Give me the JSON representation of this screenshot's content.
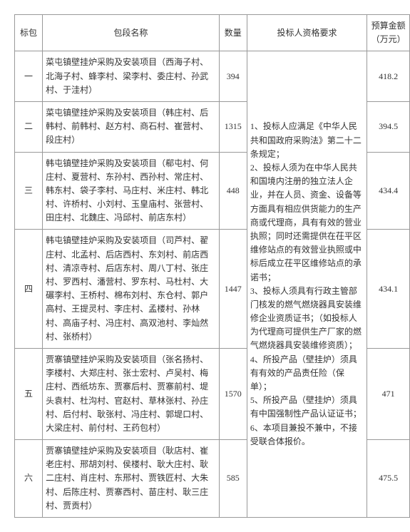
{
  "table": {
    "headers": {
      "biaobao": "标包",
      "name": "包段名称",
      "qty": "数量",
      "req": "投标人资格要求",
      "budget": "预算金额（万元）"
    },
    "rows": [
      {
        "biaobao": "一",
        "name": "菜屯镇壁挂炉采购及安装项目（西海子村、北海子村、蜂李村、梁李村、委庄村、孙武村、于洼村）",
        "qty": "394",
        "budget": "418.2"
      },
      {
        "biaobao": "二",
        "name": "菜屯镇壁挂炉采购及安装项目（韩庄村、后韩村、前韩村、赵方村、商石村、崔营村、段庄村）",
        "qty": "1315",
        "budget": "394.5"
      },
      {
        "biaobao": "三",
        "name": "韩屯镇壁挂炉采购及安装项目（郗屯村、何庄村、夏营村、东孙村、西孙村、常庄村、韩东村、袋子李村、马庄村、米庄村、韩北村、许桥村、小刘村、玉皇庙村、张营村、田庄村、北魏庄、冯邱村、前店东村）",
        "qty": "448",
        "budget": "434.4"
      },
      {
        "biaobao": "四",
        "name": "韩屯镇壁挂炉采购及安装项目（司芦村、翟庄村、北孟村、后店西村、东刘村、前店西村、清凉寺村、后店东村、周八丁村、张庄村、罗西村、潘营村、罗东村、马杜村、大碾李村、王桥村、棉布刘村、东仓村、郭户高村、王提灵村、李庄村、孟楼村、孙林村、高庙子村、冯庄村、高双池村、李灿然村、张桥村）",
        "qty": "1447",
        "budget": "434.1"
      },
      {
        "biaobao": "五",
        "name": "贾寨镇壁挂炉采购及安装项目（张名扬村、李楼村、大郑庄村、张士宏村、卢吴村、梅庄村、西纸坊东、贾寨后村、贾寨前村、堤头袁村、杜沟村、官赵村、草林张村、孙庄村、后付村、耿张村、冯庄村、郭堤口村、大梁庄村、前付村、王药包村）",
        "qty": "1570",
        "budget": "471"
      },
      {
        "biaobao": "六",
        "name": "贾寨镇壁挂炉采购及安装项目（耿店村、崔老庄村、邢胡刘村、侯楼村、耿大庄村、耿二庄村、肖庄村、东邢村、贾铁匠村、大朱村、后陈庄村、贾寨西村、苗庄村、耿三庄村、贾贡村）",
        "qty": "585",
        "budget": "475.5"
      }
    ],
    "requirements": "1、投标人应满足《中华人民共和国政府采购法》第二十二条规定；\n2、投标人须为在中华人民共和国境内注册的独立法人企业，并在人员、资金、设备等方面具有相应供货能力的生产商或代理商，具有有效的营业执照；同时还需提供在茌平区维修站点的有效营业执照或中标后成立茌平区维修站点的承诺书；\n3、投标人须具有行政主管部门核发的燃气燃烧器具安装维修企业资质证书；（如投标人为代理商可提供生产厂家的燃气燃烧器具安装维修资质）；\n4、所投产品（壁挂炉）须具有有效的产品责任险（保单）；\n5、所投产品（壁挂炉）须具有中国强制性产品认证证书；\n6、本项目兼投不兼中，不接受联合体报价。"
  }
}
